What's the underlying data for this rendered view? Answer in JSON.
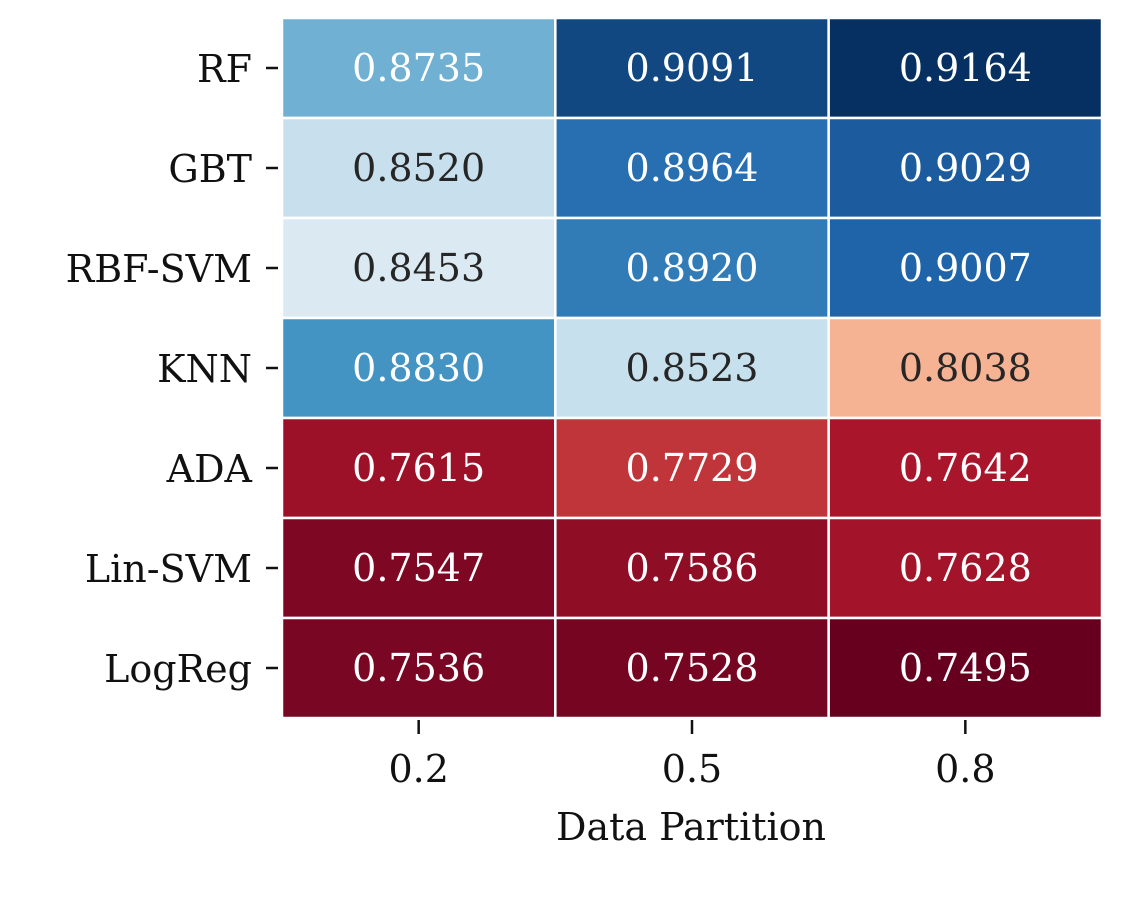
{
  "chart_data": {
    "type": "heatmap",
    "title": "",
    "xlabel": "Data Partition",
    "ylabel": "",
    "x": [
      "0.2",
      "0.5",
      "0.8"
    ],
    "y": [
      "RF",
      "GBT",
      "RBF-SVM",
      "KNN",
      "ADA",
      "Lin-SVM",
      "LogReg"
    ],
    "values": [
      [
        0.8735,
        0.9091,
        0.9164
      ],
      [
        0.852,
        0.8964,
        0.9029
      ],
      [
        0.8453,
        0.892,
        0.9007
      ],
      [
        0.883,
        0.8523,
        0.8038
      ],
      [
        0.7615,
        0.7729,
        0.7642
      ],
      [
        0.7547,
        0.7586,
        0.7628
      ],
      [
        0.7536,
        0.7528,
        0.7495
      ]
    ],
    "labels": [
      [
        "0.8735",
        "0.9091",
        "0.9164"
      ],
      [
        "0.8520",
        "0.8964",
        "0.9029"
      ],
      [
        "0.8453",
        "0.8920",
        "0.9007"
      ],
      [
        "0.8830",
        "0.8523",
        "0.8038"
      ],
      [
        "0.7615",
        "0.7729",
        "0.7642"
      ],
      [
        "0.7547",
        "0.7586",
        "0.7628"
      ],
      [
        "0.7536",
        "0.7528",
        "0.7495"
      ]
    ],
    "colormap": "RdBu",
    "color_range": [
      0.7495,
      0.9164
    ],
    "grid": false,
    "legend": "none",
    "cell_border_color": "#ffffff"
  }
}
